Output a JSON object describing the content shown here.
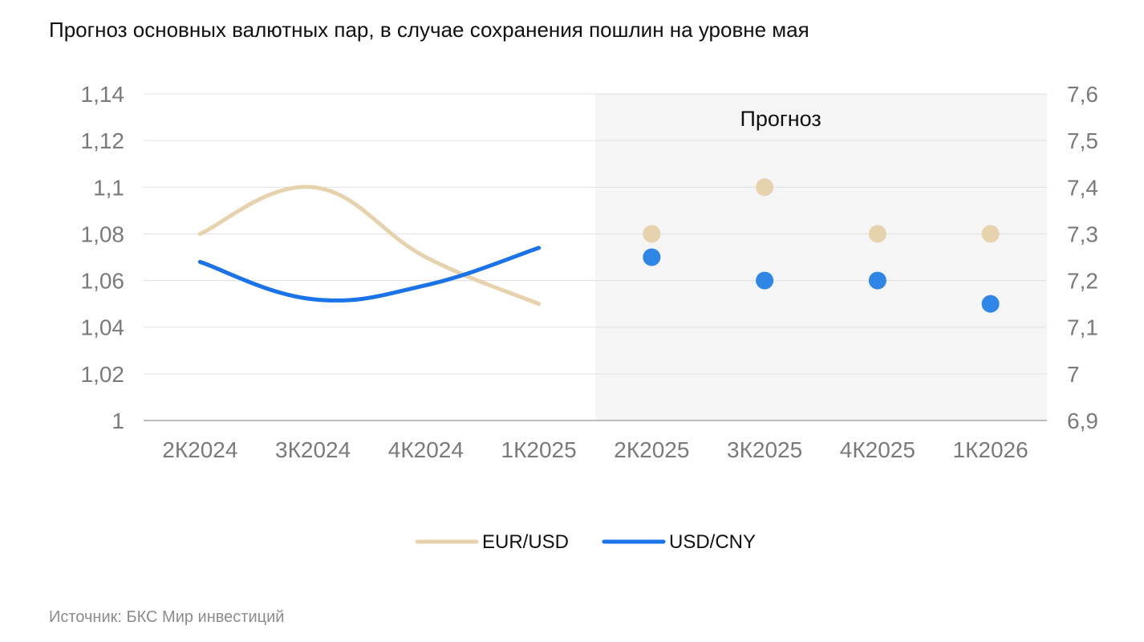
{
  "title": "Прогноз основных валютных пар, в случае сохранения пошлин на уровне мая",
  "source": "Источник: БКС Мир инвестиций",
  "colors": {
    "eur_usd": "#e6d3ad",
    "usd_cny": "#1a73e8",
    "usd_cny_forecast": "#2f86e6",
    "forecast_bg": "#f5f5f5",
    "grid": "#e0e0e0",
    "axis": "#bdbdbd"
  },
  "chart_data": {
    "type": "line",
    "forecast_label": "Прогноз",
    "forecast_start_category": "2К2025",
    "categories": [
      "2К2024",
      "3К2024",
      "4К2024",
      "1К2025",
      "2К2025",
      "3К2025",
      "4К2025",
      "1К2026"
    ],
    "left_axis": {
      "ylim": [
        1,
        1.14
      ],
      "ticks": [
        "1",
        "1,02",
        "1,04",
        "1,06",
        "1,08",
        "1,1",
        "1,12",
        "1,14"
      ]
    },
    "right_axis": {
      "ylim": [
        6.9,
        7.6
      ],
      "ticks": [
        "6,9",
        "7",
        "7,1",
        "7,2",
        "7,3",
        "7,4",
        "7,5",
        "7,6"
      ]
    },
    "grid": true,
    "legend_position": "bottom",
    "series": [
      {
        "name": "EUR/USD",
        "axis": "left",
        "actual": [
          1.08,
          1.1,
          1.07,
          1.05
        ],
        "forecast": [
          1.08,
          1.1,
          1.08,
          1.08
        ]
      },
      {
        "name": "USD/CNY",
        "axis": "right",
        "actual": [
          7.24,
          7.16,
          7.19,
          7.27
        ],
        "forecast": [
          7.25,
          7.2,
          7.2,
          7.15
        ]
      }
    ]
  }
}
